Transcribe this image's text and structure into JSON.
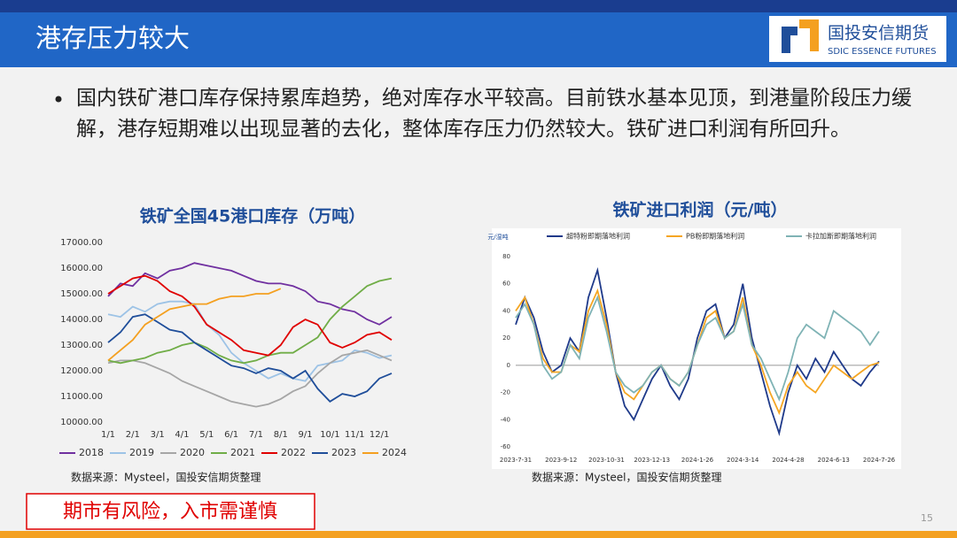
{
  "header": {
    "title": "港存压力较大",
    "logo_cn": "国投安信期货",
    "logo_en": "SDIC ESSENCE FUTURES"
  },
  "body": {
    "bullet": "国内铁矿港口库存保持累库趋势，绝对库存水平较高。目前铁水基本见顶，到港量阶段压力缓解，港存短期难以出现显著的去化，整体库存压力仍然较大。铁矿进口利润有所回升。"
  },
  "chart_data": [
    {
      "type": "line",
      "title": "铁矿全国45港口库存（万吨）",
      "legend": "bottom",
      "categories": [
        "1/1",
        null,
        "2/1",
        null,
        "3/1",
        null,
        "4/1",
        null,
        "5/1",
        null,
        "6/1",
        null,
        "7/1",
        null,
        "8/1",
        null,
        "9/1",
        null,
        "10/1",
        null,
        "11/1",
        null,
        "12/1",
        null
      ],
      "ylim": [
        10000,
        17000
      ],
      "yticks": [
        {
          "value": 10000,
          "label": "10000.00"
        },
        {
          "value": 11000,
          "label": "11000.00"
        },
        {
          "value": 12000,
          "label": "12000.00"
        },
        {
          "value": 13000,
          "label": "13000.00"
        },
        {
          "value": 14000,
          "label": "14000.00"
        },
        {
          "value": 15000,
          "label": "15000.00"
        },
        {
          "value": 16000,
          "label": "16000.00"
        },
        {
          "value": 17000,
          "label": "17000.00"
        }
      ],
      "series": [
        {
          "name": "2018",
          "color": "#7030a0",
          "values": [
            14900,
            15400,
            15300,
            15800,
            15600,
            15900,
            16000,
            16200,
            16100,
            16000,
            15900,
            15700,
            15500,
            15400,
            15400,
            15300,
            15100,
            14700,
            14600,
            14400,
            14300,
            14000,
            13800,
            14100
          ]
        },
        {
          "name": "2019",
          "color": "#9dc3e6",
          "values": [
            14200,
            14100,
            14500,
            14300,
            14600,
            14700,
            14700,
            14600,
            13800,
            13400,
            12700,
            12300,
            12000,
            11700,
            11900,
            11700,
            11600,
            12200,
            12300,
            12400,
            12800,
            12700,
            12500,
            12600
          ]
        },
        {
          "name": "2020",
          "color": "#a6a6a6",
          "values": [
            12300,
            12400,
            12400,
            12300,
            12100,
            11900,
            11600,
            11400,
            11200,
            11000,
            10800,
            10700,
            10600,
            10700,
            10900,
            11200,
            11400,
            11900,
            12300,
            12600,
            12700,
            12800,
            12600,
            12400
          ]
        },
        {
          "name": "2021",
          "color": "#70ad47",
          "values": [
            12400,
            12300,
            12400,
            12500,
            12700,
            12800,
            13000,
            13100,
            12900,
            12600,
            12400,
            12300,
            12400,
            12600,
            12700,
            12700,
            13000,
            13300,
            14000,
            14500,
            14900,
            15300,
            15500,
            15600
          ]
        },
        {
          "name": "2022",
          "color": "#e00000",
          "values": [
            15000,
            15300,
            15600,
            15700,
            15500,
            15100,
            14900,
            14500,
            13800,
            13500,
            13200,
            12800,
            12700,
            12600,
            13000,
            13700,
            14000,
            13800,
            13100,
            12900,
            13100,
            13400,
            13500,
            13200
          ]
        },
        {
          "name": "2023",
          "color": "#1f4e9a",
          "values": [
            13100,
            13500,
            14100,
            14200,
            13900,
            13600,
            13500,
            13100,
            12800,
            12500,
            12200,
            12100,
            11900,
            12100,
            12000,
            11700,
            12000,
            11300,
            10800,
            11100,
            11000,
            11200,
            11700,
            11900
          ]
        },
        {
          "name": "2024",
          "color": "#f4a020",
          "values": [
            12400,
            12800,
            13200,
            13800,
            14100,
            14400,
            14500,
            14600,
            14600,
            14800,
            14900,
            14900,
            15000,
            15000,
            15200,
            null,
            null,
            null,
            null,
            null,
            null,
            null,
            null,
            null
          ]
        }
      ]
    },
    {
      "type": "line",
      "title": "铁矿进口利润（元/吨）",
      "legend": "top",
      "y_label": "元/湿吨",
      "categories": [
        "2023-7-31",
        null,
        null,
        null,
        null,
        "2023-9-12",
        null,
        null,
        null,
        null,
        "2023-10-31",
        null,
        null,
        null,
        null,
        "2023-12-13",
        null,
        null,
        null,
        null,
        "2024-1-26",
        null,
        null,
        null,
        null,
        "2024-3-14",
        null,
        null,
        null,
        null,
        "2024-4-28",
        null,
        null,
        null,
        null,
        "2024-6-13",
        null,
        null,
        null,
        null,
        "2024-7-26"
      ],
      "ylim": [
        -60,
        80
      ],
      "yticks": [
        -60,
        -40,
        -20,
        0,
        20,
        40,
        60,
        80
      ],
      "series": [
        {
          "name": "超特粉即期落地利润",
          "color": "#1f3a8a",
          "values": [
            30,
            50,
            35,
            10,
            -5,
            0,
            20,
            10,
            50,
            70,
            35,
            -5,
            -30,
            -40,
            -25,
            -10,
            0,
            -15,
            -25,
            -10,
            20,
            40,
            45,
            20,
            30,
            60,
            20,
            -5,
            -30,
            -50,
            -20,
            0,
            -10,
            5,
            -5,
            10,
            0,
            -10,
            -15,
            -5,
            3
          ]
        },
        {
          "name": "PB粉即期落地利润",
          "color": "#f5a623",
          "values": [
            40,
            50,
            30,
            5,
            -5,
            -5,
            15,
            10,
            40,
            55,
            30,
            -5,
            -20,
            -25,
            -15,
            -5,
            0,
            -10,
            -15,
            -5,
            15,
            35,
            40,
            20,
            25,
            50,
            15,
            0,
            -20,
            -35,
            -15,
            -5,
            -15,
            -20,
            -10,
            0,
            -5,
            -10,
            -5,
            0,
            2
          ]
        },
        {
          "name": "卡拉加斯即期落地利润",
          "color": "#7fb3b5",
          "values": [
            35,
            45,
            30,
            0,
            -10,
            -5,
            15,
            5,
            35,
            50,
            25,
            -5,
            -15,
            -20,
            -15,
            -5,
            0,
            -10,
            -15,
            -5,
            15,
            30,
            35,
            20,
            25,
            45,
            15,
            5,
            -10,
            -25,
            -5,
            20,
            30,
            25,
            20,
            40,
            35,
            30,
            25,
            15,
            25
          ]
        }
      ]
    }
  ],
  "sources": [
    "数据来源：Mysteel，国投安信期货整理",
    "数据来源：Mysteel，国投安信期货整理"
  ],
  "footer": {
    "disclaimer": "期市有风险，入市需谨慎",
    "page": "15"
  }
}
